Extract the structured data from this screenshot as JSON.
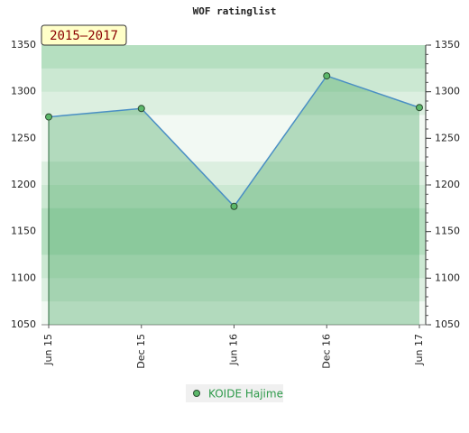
{
  "chart_data": {
    "type": "line",
    "title": "WOF ratinglist",
    "badge": "2015–2017",
    "categories": [
      "Jun 15",
      "Dec 15",
      "Jun 16",
      "Dec 16",
      "Jun 17"
    ],
    "series": [
      {
        "name": "KOIDE Hajime",
        "color": "#4a8fc4",
        "values": [
          1273,
          1282,
          1177,
          1317,
          1283
        ]
      }
    ],
    "ylim": [
      1050,
      1350
    ],
    "yticks": [
      1050,
      1100,
      1150,
      1200,
      1250,
      1300,
      1350
    ]
  }
}
